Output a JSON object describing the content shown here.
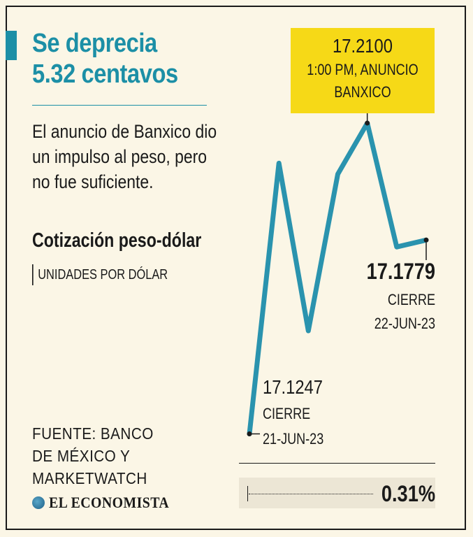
{
  "headline": {
    "line1": "Se deprecia",
    "line2": "5.32 centavos"
  },
  "deck": [
    "El anuncio de Banxico dio",
    "un impulso al peso, pero",
    "no fue suficiente."
  ],
  "source": [
    "FUENTE: BANCO",
    "DE MÉXICO Y",
    "MARKETWATCH"
  ],
  "brand": "EL ECONOMISTA",
  "colors": {
    "accent": "#1c8fa6",
    "highlight": "#f6d917",
    "line": "#2a93ae",
    "background": "#fbf6e6"
  },
  "chart_data": {
    "type": "line",
    "title": "Cotización peso-dólar",
    "ylabel": "UNIDADES POR DÓLAR",
    "xlabel": "",
    "grid": false,
    "legend": "none",
    "ylim": [
      17.12,
      17.215
    ],
    "series": [
      {
        "values": [
          17.1247,
          17.199,
          17.153,
          17.196,
          17.21,
          17.176,
          17.1779
        ]
      }
    ],
    "annotations": {
      "peak": {
        "index": 4,
        "value": "17.2100",
        "lines": [
          "1:00 PM, ANUNCIO",
          "BANXICO"
        ]
      },
      "start": {
        "index": 0,
        "value": "17.1247",
        "lines": [
          "CIERRE",
          "21-JUN-23"
        ]
      },
      "end": {
        "index": 6,
        "value": "17.1779",
        "lines": [
          "CIERRE",
          "22-JUN-23"
        ]
      }
    },
    "change": "0.31%"
  }
}
